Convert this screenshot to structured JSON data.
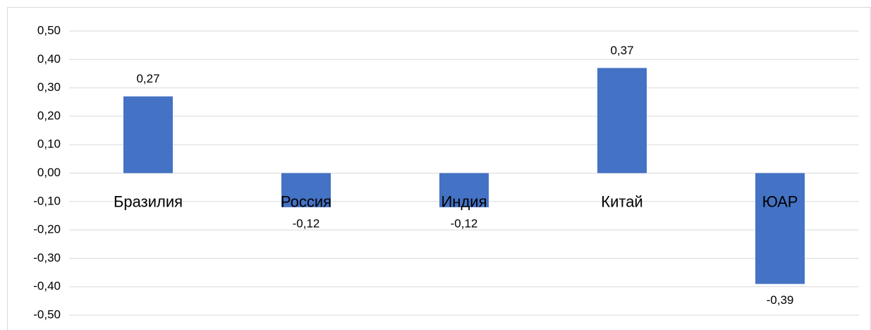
{
  "chart_data": {
    "type": "bar",
    "categories": [
      "Бразилия",
      "Россия",
      "Индия",
      "Китай",
      "ЮАР"
    ],
    "values": [
      0.27,
      -0.12,
      -0.12,
      0.37,
      -0.39
    ],
    "value_labels": [
      "0,27",
      "-0,12",
      "-0,12",
      "0,37",
      "-0,39"
    ],
    "color": "#4472c4",
    "ylim": [
      -0.5,
      0.5
    ],
    "yticks": [
      {
        "value": -0.5,
        "label": "-0,50"
      },
      {
        "value": -0.4,
        "label": "-0,40"
      },
      {
        "value": -0.3,
        "label": "-0,30"
      },
      {
        "value": -0.2,
        "label": "-0,20"
      },
      {
        "value": -0.1,
        "label": "-0,10"
      },
      {
        "value": 0,
        "label": "0,00"
      },
      {
        "value": 0.1,
        "label": "0,10"
      },
      {
        "value": 0.2,
        "label": "0,20"
      },
      {
        "value": 0.3,
        "label": "0,30"
      },
      {
        "value": 0.4,
        "label": "0,40"
      },
      {
        "value": 0.5,
        "label": "0,50"
      }
    ],
    "grid": true
  }
}
